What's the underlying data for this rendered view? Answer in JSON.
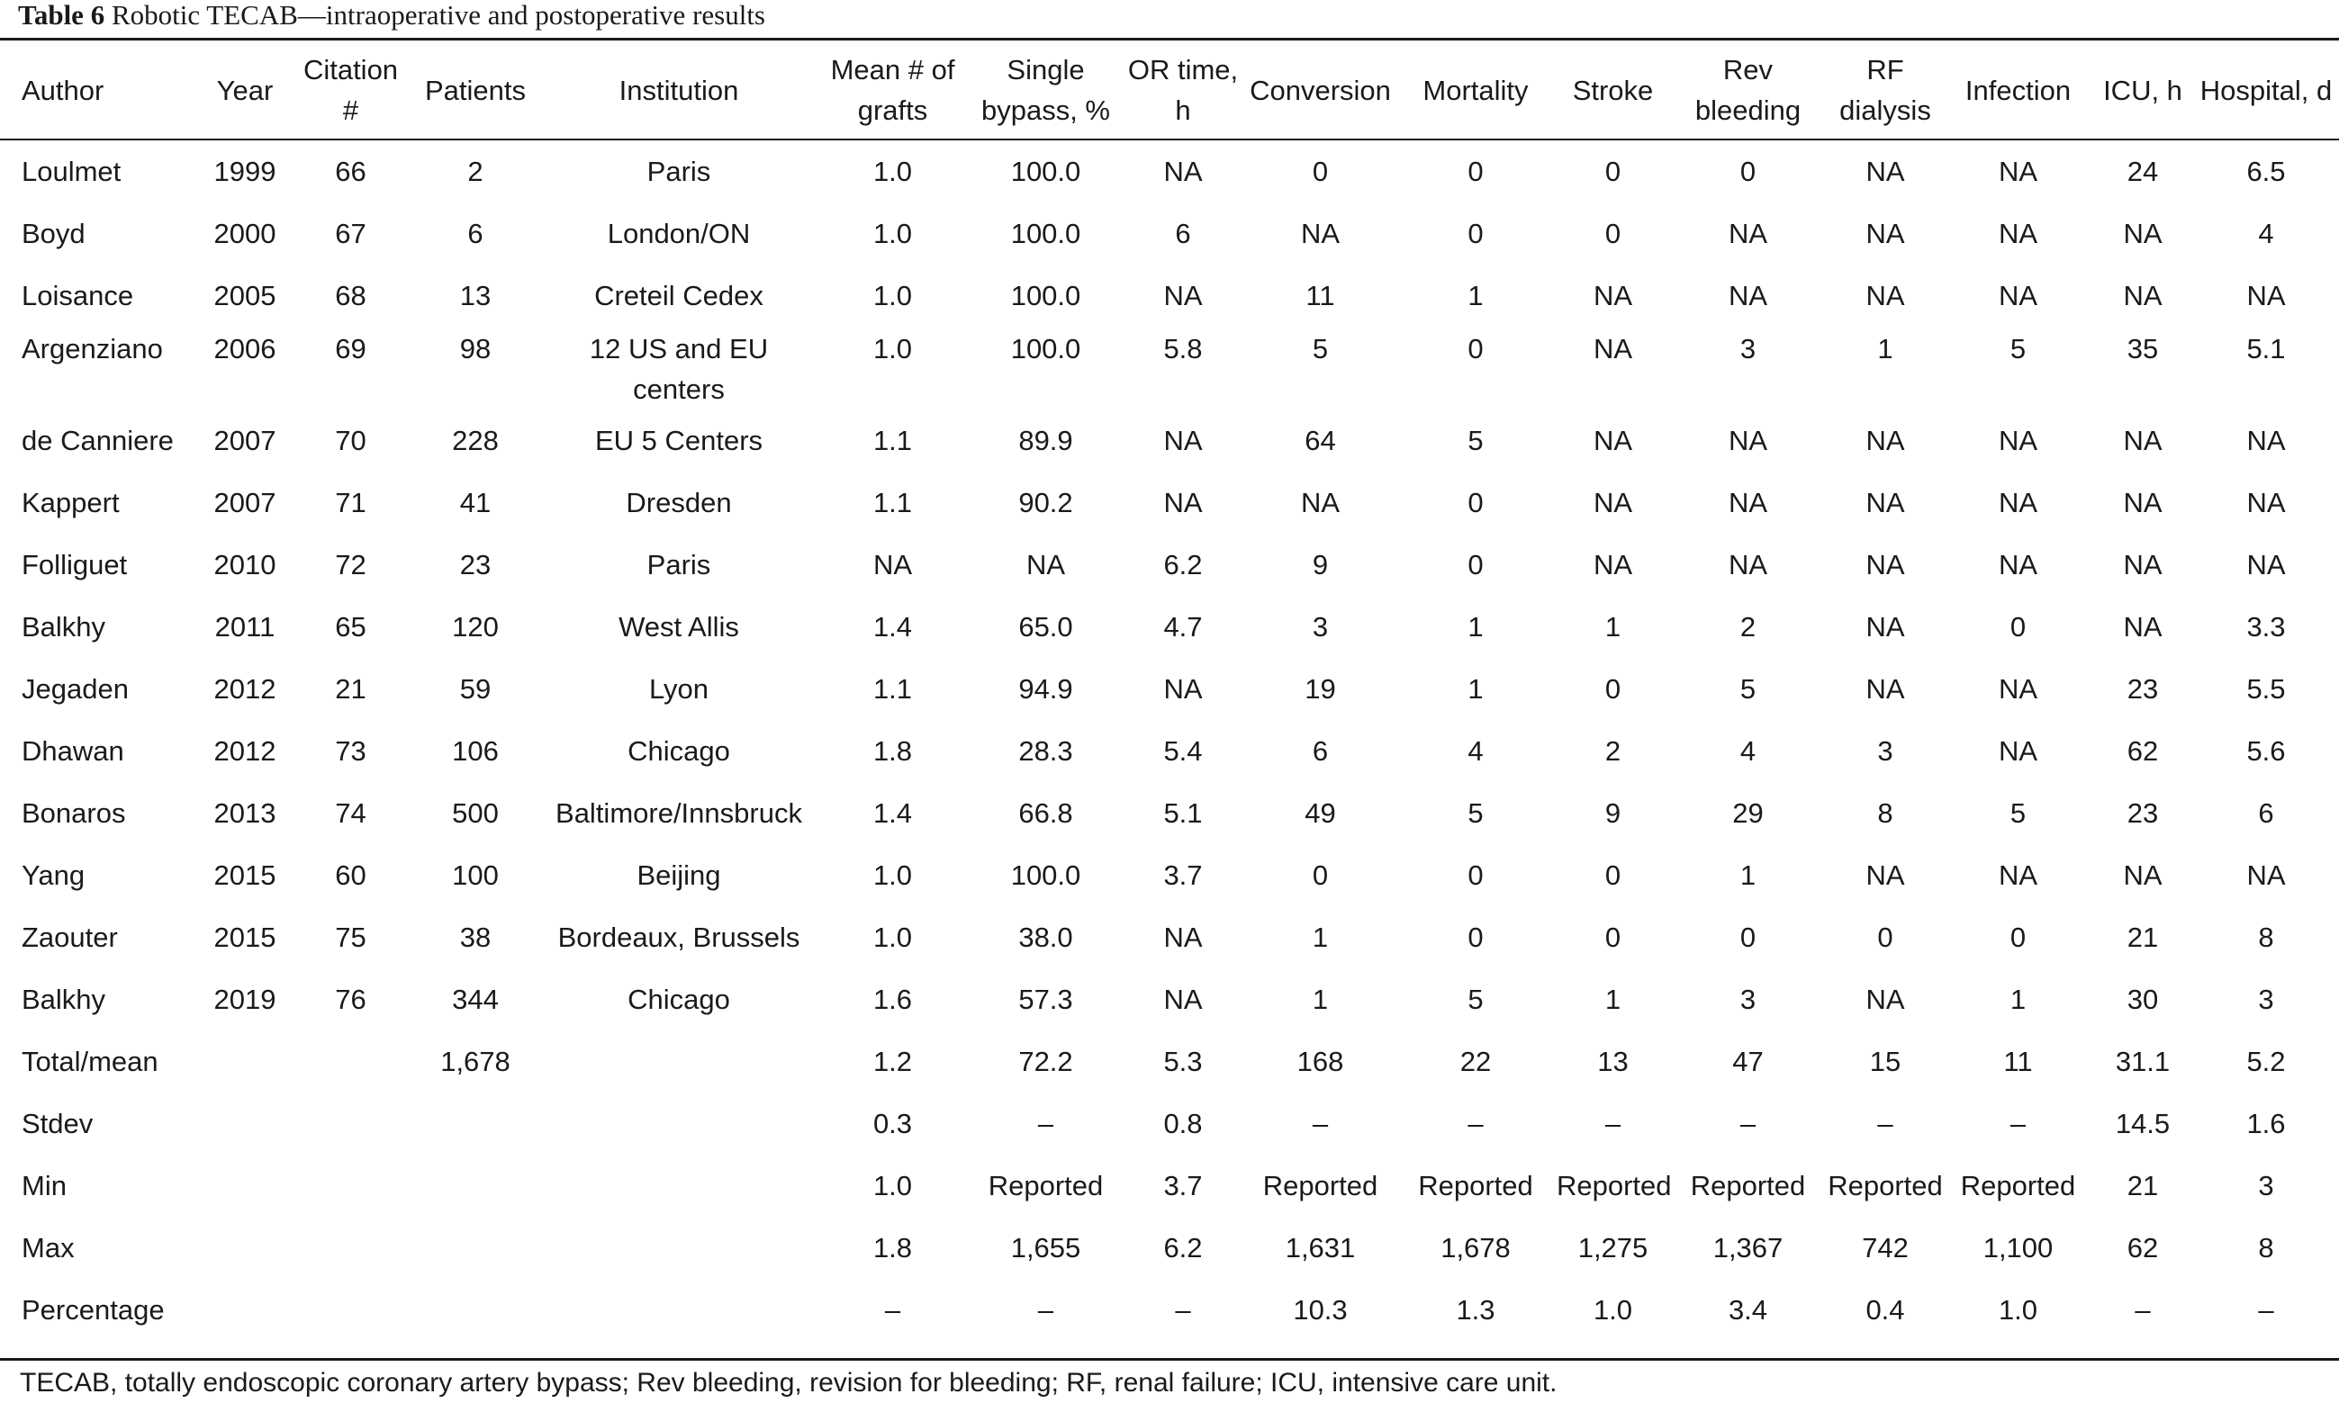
{
  "caption": {
    "label": "Table 6",
    "title": "Robotic TECAB—intraoperative and postoperative results"
  },
  "table": {
    "headers": [
      "Author",
      "Year",
      "Citation #",
      "Patients",
      "Institution",
      "Mean # of grafts",
      "Single bypass, %",
      "OR time, h",
      "Conversion",
      "Mortality",
      "Stroke",
      "Rev bleeding",
      "RF dialysis",
      "Infection",
      "ICU, h",
      "Hospital, d"
    ],
    "rows": [
      [
        "Loulmet",
        "1999",
        "66",
        "2",
        "Paris",
        "1.0",
        "100.0",
        "NA",
        "0",
        "0",
        "0",
        "0",
        "NA",
        "NA",
        "24",
        "6.5"
      ],
      [
        "Boyd",
        "2000",
        "67",
        "6",
        "London/ON",
        "1.0",
        "100.0",
        "6",
        "NA",
        "0",
        "0",
        "NA",
        "NA",
        "NA",
        "NA",
        "4"
      ],
      [
        "Loisance",
        "2005",
        "68",
        "13",
        "Creteil Cedex",
        "1.0",
        "100.0",
        "NA",
        "11",
        "1",
        "NA",
        "NA",
        "NA",
        "NA",
        "NA",
        "NA"
      ],
      [
        "Argenziano",
        "2006",
        "69",
        "98",
        "12 US and EU centers",
        "1.0",
        "100.0",
        "5.8",
        "5",
        "0",
        "NA",
        "3",
        "1",
        "5",
        "35",
        "5.1"
      ],
      [
        "de Canniere",
        "2007",
        "70",
        "228",
        "EU 5 Centers",
        "1.1",
        "89.9",
        "NA",
        "64",
        "5",
        "NA",
        "NA",
        "NA",
        "NA",
        "NA",
        "NA"
      ],
      [
        "Kappert",
        "2007",
        "71",
        "41",
        "Dresden",
        "1.1",
        "90.2",
        "NA",
        "NA",
        "0",
        "NA",
        "NA",
        "NA",
        "NA",
        "NA",
        "NA"
      ],
      [
        "Folliguet",
        "2010",
        "72",
        "23",
        "Paris",
        "NA",
        "NA",
        "6.2",
        "9",
        "0",
        "NA",
        "NA",
        "NA",
        "NA",
        "NA",
        "NA"
      ],
      [
        "Balkhy",
        "2011",
        "65",
        "120",
        "West Allis",
        "1.4",
        "65.0",
        "4.7",
        "3",
        "1",
        "1",
        "2",
        "NA",
        "0",
        "NA",
        "3.3"
      ],
      [
        "Jegaden",
        "2012",
        "21",
        "59",
        "Lyon",
        "1.1",
        "94.9",
        "NA",
        "19",
        "1",
        "0",
        "5",
        "NA",
        "NA",
        "23",
        "5.5"
      ],
      [
        "Dhawan",
        "2012",
        "73",
        "106",
        "Chicago",
        "1.8",
        "28.3",
        "5.4",
        "6",
        "4",
        "2",
        "4",
        "3",
        "NA",
        "62",
        "5.6"
      ],
      [
        "Bonaros",
        "2013",
        "74",
        "500",
        "Baltimore/Innsbruck",
        "1.4",
        "66.8",
        "5.1",
        "49",
        "5",
        "9",
        "29",
        "8",
        "5",
        "23",
        "6"
      ],
      [
        "Yang",
        "2015",
        "60",
        "100",
        "Beijing",
        "1.0",
        "100.0",
        "3.7",
        "0",
        "0",
        "0",
        "1",
        "NA",
        "NA",
        "NA",
        "NA"
      ],
      [
        "Zaouter",
        "2015",
        "75",
        "38",
        "Bordeaux, Brussels",
        "1.0",
        "38.0",
        "NA",
        "1",
        "0",
        "0",
        "0",
        "0",
        "0",
        "21",
        "8"
      ],
      [
        "Balkhy",
        "2019",
        "76",
        "344",
        "Chicago",
        "1.6",
        "57.3",
        "NA",
        "1",
        "5",
        "1",
        "3",
        "NA",
        "1",
        "30",
        "3"
      ],
      [
        "Total/mean",
        "",
        "",
        "1,678",
        "",
        "1.2",
        "72.2",
        "5.3",
        "168",
        "22",
        "13",
        "47",
        "15",
        "11",
        "31.1",
        "5.2"
      ],
      [
        "Stdev",
        "",
        "",
        "",
        "",
        "0.3",
        "–",
        "0.8",
        "–",
        "–",
        "–",
        "–",
        "–",
        "–",
        "14.5",
        "1.6"
      ],
      [
        "Min",
        "",
        "",
        "",
        "",
        "1.0",
        "Reported",
        "3.7",
        "Reported",
        "Reported",
        "Reported",
        "Reported",
        "Reported",
        "Reported",
        "21",
        "3"
      ],
      [
        "Max",
        "",
        "",
        "",
        "",
        "1.8",
        "1,655",
        "6.2",
        "1,631",
        "1,678",
        "1,275",
        "1,367",
        "742",
        "1,100",
        "62",
        "8"
      ],
      [
        "Percentage",
        "",
        "",
        "",
        "",
        "–",
        "–",
        "–",
        "10.3",
        "1.3",
        "1.0",
        "3.4",
        "0.4",
        "1.0",
        "–",
        "–"
      ]
    ]
  },
  "footnote": "TECAB, totally endoscopic coronary artery bypass; Rev bleeding, revision for bleeding; RF, renal failure; ICU, intensive care unit."
}
